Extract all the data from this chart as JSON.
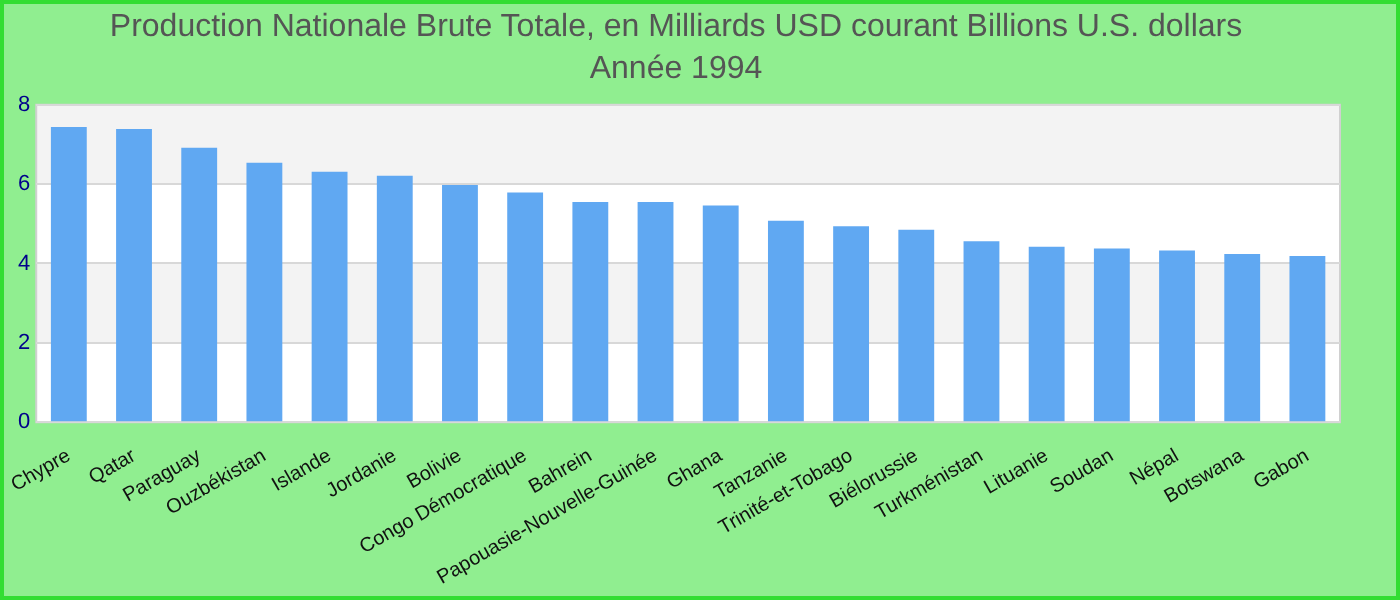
{
  "chart_data": {
    "type": "bar",
    "title": "Production Nationale Brute Totale, en Milliards USD courant Billions U.S. dollars",
    "subtitle": "Année 1994",
    "categories": [
      "Chypre",
      "Qatar",
      "Paraguay",
      "Ouzbékistan",
      "Islande",
      "Jordanie",
      "Bolivie",
      "Congo Démocratique",
      "Bahrein",
      "Papouasie-Nouvelle-Guinée",
      "Ghana",
      "Tanzanie",
      "Trinité-et-Tobago",
      "Biélorussie",
      "Turkménistan",
      "Lituanie",
      "Soudan",
      "Népal",
      "Botswana",
      "Gabon"
    ],
    "values": [
      7.44,
      7.39,
      6.92,
      6.54,
      6.31,
      6.21,
      5.98,
      5.79,
      5.55,
      5.55,
      5.46,
      5.08,
      4.94,
      4.85,
      4.56,
      4.42,
      4.38,
      4.33,
      4.24,
      4.19
    ],
    "color": "#60a8f2",
    "ylim": [
      0,
      8
    ],
    "yticks": [
      0,
      2,
      4,
      6,
      8
    ],
    "grid": "y"
  }
}
